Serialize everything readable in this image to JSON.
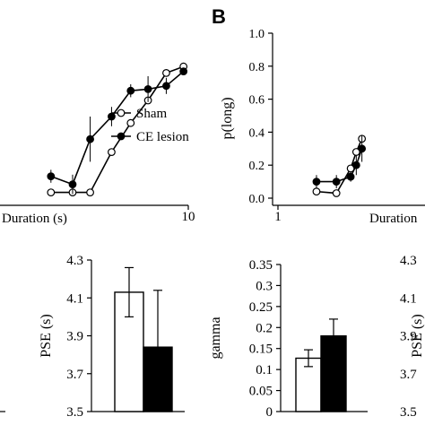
{
  "panel_labels": {
    "b": "B"
  },
  "chart_data": [
    {
      "id": "A_psychometric",
      "type": "line",
      "xlabel": "Duration (s)",
      "x_scale": "log",
      "x_ticks": [
        10
      ],
      "x_tick_labels": [
        "10"
      ],
      "x": [
        2.3,
        2.9,
        3.5,
        4.4,
        5.4,
        6.5,
        7.9,
        9.5
      ],
      "series": [
        {
          "name": "Sham",
          "marker": "open-circle",
          "color": "#000000",
          "values": [
            0.03,
            0.03,
            0.03,
            0.28,
            0.46,
            0.6,
            0.77,
            0.81
          ],
          "error": [
            0,
            0,
            0,
            0,
            0,
            0,
            0,
            0
          ]
        },
        {
          "name": "CE lesion",
          "marker": "filled-circle",
          "color": "#000000",
          "values": [
            0.13,
            0.08,
            0.36,
            0.5,
            0.66,
            0.67,
            0.69,
            0.78
          ],
          "error": [
            0.04,
            0.06,
            0.14,
            0.06,
            0.04,
            0.08,
            0.05,
            0.02
          ]
        }
      ]
    },
    {
      "id": "B_psychometric",
      "type": "line",
      "ylabel": "p(long)",
      "xlabel": "Duration",
      "x_scale": "log",
      "x_ticks": [
        1
      ],
      "x_tick_labels": [
        "1"
      ],
      "y_ticks": [
        0.0,
        0.2,
        0.4,
        0.6,
        0.8,
        1.0
      ],
      "y_tick_labels": [
        "0.0",
        "0.2",
        "0.4",
        "0.6",
        "0.8",
        "1.0"
      ],
      "ylim": [
        0,
        1
      ],
      "x": [
        1.5,
        1.85,
        2.15,
        2.28,
        2.42
      ],
      "series": [
        {
          "name": "Sham",
          "marker": "open-circle",
          "color": "#000000",
          "values": [
            0.04,
            0.03,
            0.18,
            0.28,
            0.36
          ],
          "error": [
            0,
            0,
            0,
            0,
            0
          ]
        },
        {
          "name": "CE lesion",
          "marker": "filled-circle",
          "color": "#000000",
          "values": [
            0.1,
            0.1,
            0.13,
            0.2,
            0.3
          ],
          "error": [
            0.04,
            0.04,
            0.03,
            0.06,
            0.08
          ]
        }
      ]
    },
    {
      "id": "A_pse_bar",
      "type": "bar",
      "ylabel": "PSE (s)",
      "ylim": [
        3.5,
        4.3
      ],
      "y_ticks": [
        3.5,
        3.7,
        3.9,
        4.1,
        4.3
      ],
      "y_tick_labels": [
        "3.5",
        "3.7",
        "3.9",
        "4.1",
        "4.3"
      ],
      "categories": [
        "Sham",
        "CE lesion"
      ],
      "values": [
        4.13,
        3.84
      ],
      "error": [
        0.13,
        0.3
      ],
      "colors": [
        "#ffffff",
        "#000000"
      ]
    },
    {
      "id": "B_gamma_bar",
      "type": "bar",
      "ylabel": "gamma",
      "ylim": [
        0,
        0.35
      ],
      "y_ticks": [
        0,
        0.05,
        0.1,
        0.15,
        0.2,
        0.25,
        0.3,
        0.35
      ],
      "y_tick_labels": [
        "0",
        "0.05",
        "0.1",
        "0.15",
        "0.2",
        "0.25",
        "0.3",
        "0.35"
      ],
      "categories": [
        "Sham",
        "CE lesion"
      ],
      "values": [
        0.127,
        0.18
      ],
      "error": [
        0.02,
        0.04
      ],
      "colors": [
        "#ffffff",
        "#000000"
      ]
    },
    {
      "id": "B_pse_bar",
      "type": "bar",
      "ylabel": "PSE (s)",
      "ylim": [
        3.5,
        4.3
      ],
      "y_ticks": [
        3.5,
        3.7,
        3.9,
        4.1,
        4.3
      ],
      "y_tick_labels": [
        "3.5",
        "3.7",
        "3.9",
        "4.1",
        "4.3"
      ],
      "categories": [],
      "values": []
    }
  ]
}
